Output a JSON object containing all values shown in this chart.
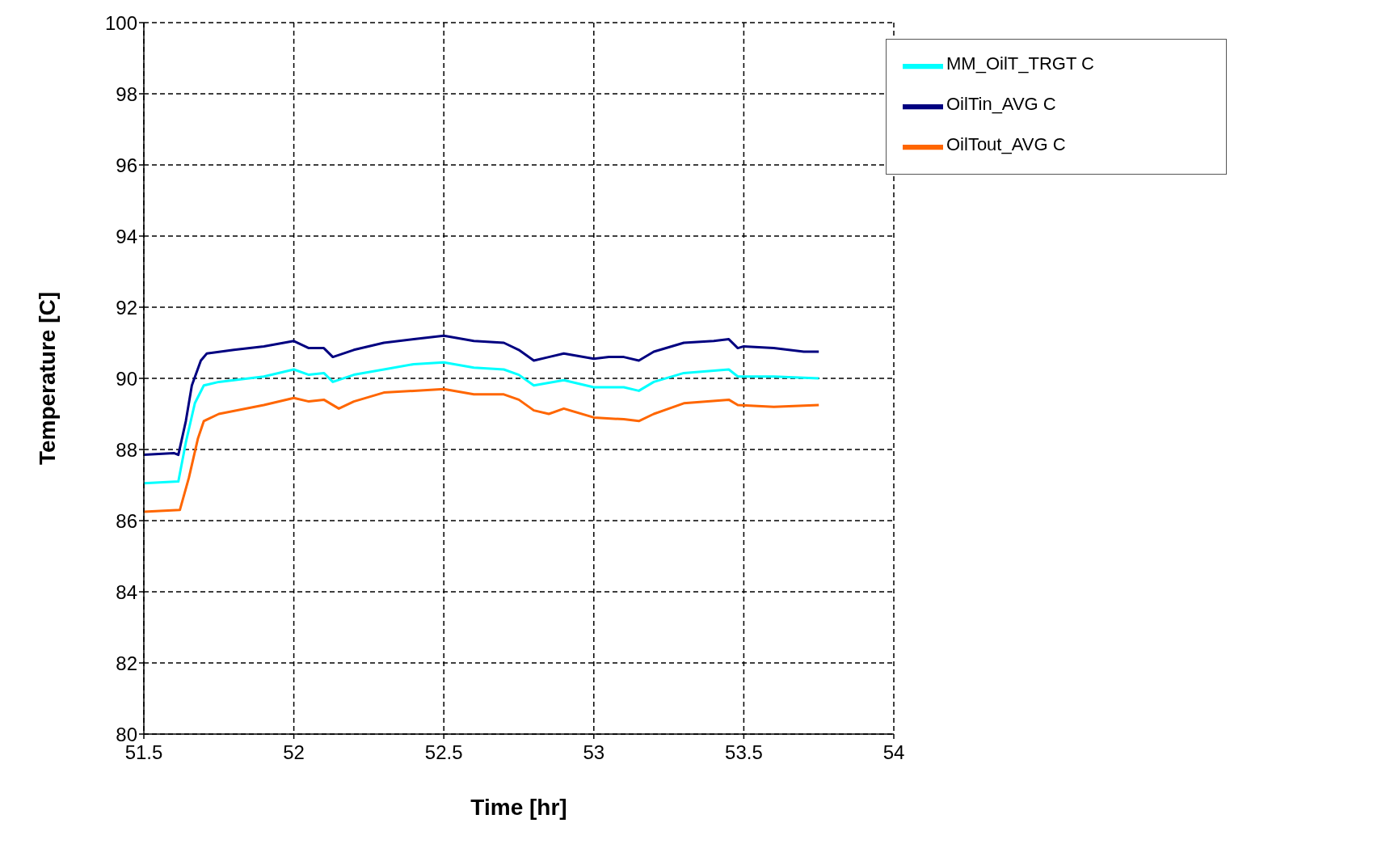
{
  "chart_data": {
    "type": "line",
    "xlabel": "Time [hr]",
    "ylabel": "Temperature [C]",
    "xlim": [
      51.5,
      54
    ],
    "xticks": [
      51.5,
      52,
      52.5,
      53,
      53.5,
      54
    ],
    "ylim": [
      80,
      100
    ],
    "yticks": [
      80,
      82,
      84,
      86,
      88,
      90,
      92,
      94,
      96,
      98,
      100
    ],
    "grid": true,
    "legend": "top right",
    "marker": "none",
    "line_style": "solid",
    "series": [
      {
        "name": "OilTin_AVG C",
        "color": "#000080",
        "x": [
          51.5,
          51.6,
          51.615,
          51.64,
          51.66,
          51.69,
          51.71,
          51.8,
          51.9,
          52.0,
          52.05,
          52.1,
          52.13,
          52.2,
          52.3,
          52.4,
          52.5,
          52.6,
          52.7,
          52.75,
          52.8,
          52.85,
          52.9,
          53.0,
          53.05,
          53.1,
          53.15,
          53.2,
          53.3,
          53.4,
          53.45,
          53.48,
          53.5,
          53.6,
          53.7,
          53.75
        ],
        "values": [
          87.85,
          87.9,
          87.85,
          88.8,
          89.8,
          90.5,
          90.7,
          90.8,
          90.9,
          91.05,
          90.85,
          90.85,
          90.6,
          90.8,
          91.0,
          91.1,
          91.2,
          91.05,
          91.0,
          90.8,
          90.5,
          90.6,
          90.7,
          90.55,
          90.6,
          90.6,
          90.5,
          90.75,
          91.0,
          91.05,
          91.1,
          90.85,
          90.9,
          90.85,
          90.75,
          90.75
        ]
      },
      {
        "name": "OilTout_AVG C",
        "color": "#ff6600",
        "x": [
          51.5,
          51.62,
          51.65,
          51.68,
          51.7,
          51.75,
          51.9,
          52.0,
          52.05,
          52.1,
          52.15,
          52.2,
          52.3,
          52.4,
          52.5,
          52.6,
          52.7,
          52.75,
          52.8,
          52.85,
          52.9,
          53.0,
          53.1,
          53.15,
          53.2,
          53.3,
          53.45,
          53.48,
          53.6,
          53.75
        ],
        "values": [
          86.25,
          86.3,
          87.2,
          88.3,
          88.8,
          89.0,
          89.25,
          89.45,
          89.35,
          89.4,
          89.15,
          89.35,
          89.6,
          89.65,
          89.7,
          89.55,
          89.55,
          89.4,
          89.1,
          89.0,
          89.15,
          88.9,
          88.85,
          88.8,
          89.0,
          89.3,
          89.4,
          89.25,
          89.2,
          89.25
        ]
      },
      {
        "name": "MM_OilT_TRGT C",
        "color": "#00ffff",
        "x": [
          51.5,
          51.615,
          51.64,
          51.67,
          51.7,
          51.75,
          51.9,
          52.0,
          52.05,
          52.1,
          52.13,
          52.2,
          52.3,
          52.4,
          52.5,
          52.6,
          52.7,
          52.75,
          52.8,
          52.9,
          53.0,
          53.1,
          53.15,
          53.2,
          53.3,
          53.45,
          53.48,
          53.6,
          53.75
        ],
        "values": [
          87.05,
          87.1,
          88.2,
          89.3,
          89.8,
          89.9,
          90.05,
          90.25,
          90.1,
          90.15,
          89.9,
          90.1,
          90.25,
          90.4,
          90.45,
          90.3,
          90.25,
          90.1,
          89.8,
          89.95,
          89.75,
          89.75,
          89.65,
          89.9,
          90.15,
          90.25,
          90.05,
          90.05,
          90.0
        ]
      }
    ]
  }
}
